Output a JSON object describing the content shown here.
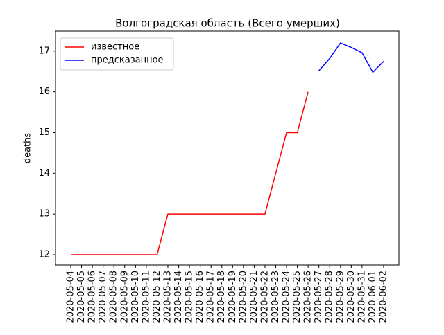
{
  "chart_data": {
    "type": "line",
    "title": "Волгоградская область (Всего умерших)",
    "y_label": "deaths",
    "categories": [
      "2020-05-04",
      "2020-05-05",
      "2020-05-06",
      "2020-05-07",
      "2020-05-08",
      "2020-05-09",
      "2020-05-10",
      "2020-05-11",
      "2020-05-12",
      "2020-05-13",
      "2020-05-14",
      "2020-05-15",
      "2020-05-16",
      "2020-05-17",
      "2020-05-18",
      "2020-05-19",
      "2020-05-20",
      "2020-05-21",
      "2020-05-22",
      "2020-05-23",
      "2020-05-24",
      "2020-05-25",
      "2020-05-26",
      "2020-05-27",
      "2020-05-28",
      "2020-05-29",
      "2020-05-30",
      "2020-05-31",
      "2020-06-01",
      "2020-06-02"
    ],
    "series": [
      {
        "name": "известное",
        "color": "#ff0000",
        "values": [
          12,
          12,
          12,
          12,
          12,
          12,
          12,
          12,
          12,
          13,
          13,
          13,
          13,
          13,
          13,
          13,
          13,
          13,
          13,
          14,
          15,
          15,
          16,
          null,
          null,
          null,
          null,
          null,
          null,
          null
        ]
      },
      {
        "name": "предсказанное",
        "color": "#0000ff",
        "values": [
          null,
          null,
          null,
          null,
          null,
          null,
          null,
          null,
          null,
          null,
          null,
          null,
          null,
          null,
          null,
          null,
          null,
          null,
          null,
          null,
          null,
          null,
          null,
          16.52,
          16.82,
          17.2,
          17.09,
          16.96,
          16.48,
          16.75
        ]
      }
    ],
    "ylim": [
      11.745,
      17.49
    ],
    "yticks": [
      12,
      13,
      14,
      15,
      16,
      17
    ],
    "grid": false,
    "legend": "upper-left"
  }
}
